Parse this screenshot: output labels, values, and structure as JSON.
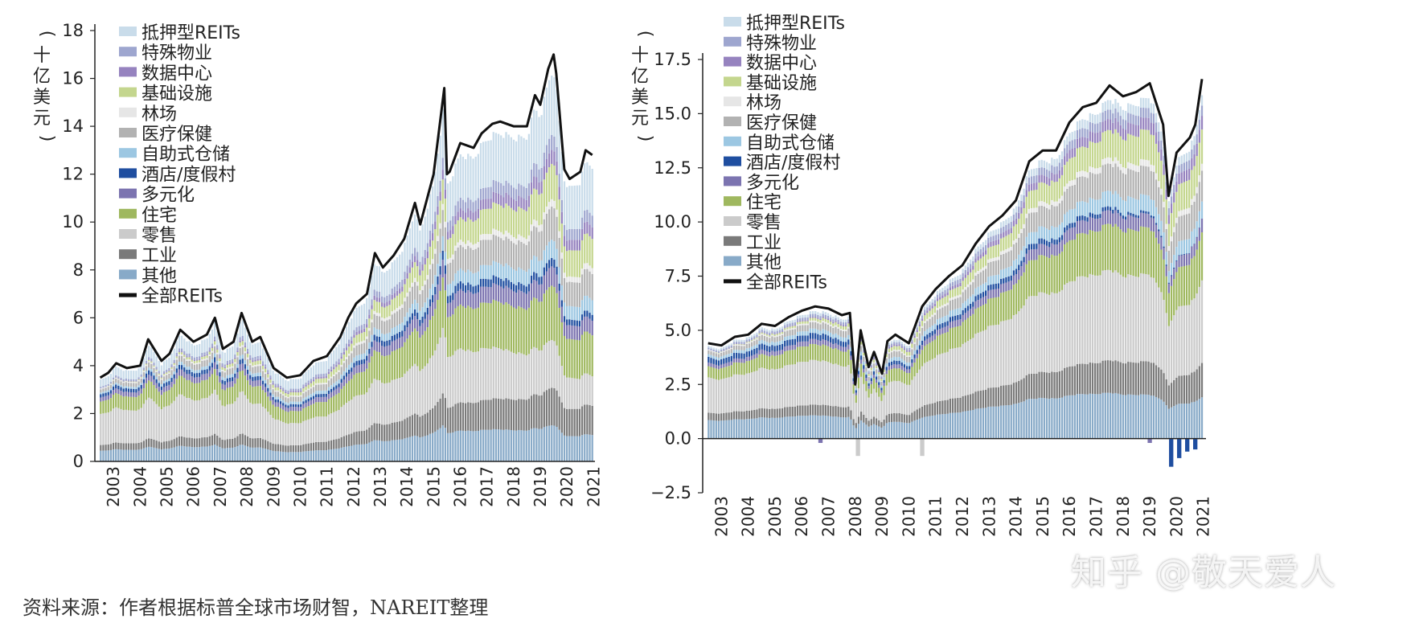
{
  "chart_data": [
    {
      "type": "area",
      "subtype": "stacked-bar-with-total-line",
      "ylabel": "（十亿美元）",
      "ylim": [
        0,
        18
      ],
      "yticks": [
        "0",
        "2",
        "4",
        "6",
        "8",
        "10",
        "12",
        "14",
        "16",
        "18"
      ],
      "xticks": [
        "2003",
        "2004",
        "2005",
        "2006",
        "2007",
        "2008",
        "2009",
        "2010",
        "2011",
        "2012",
        "2013",
        "2014",
        "2015",
        "2016",
        "2017",
        "2018",
        "2019",
        "2020",
        "2021"
      ],
      "legend": [
        {
          "name": "抵押型REITs",
          "color": "#c9dcea"
        },
        {
          "name": "特殊物业",
          "color": "#9ea6cf"
        },
        {
          "name": "数据中心",
          "color": "#9683bf"
        },
        {
          "name": "基础设施",
          "color": "#c4d68e"
        },
        {
          "name": "林场",
          "color": "#e6e6e6"
        },
        {
          "name": "医疗保健",
          "color": "#b2b2b2"
        },
        {
          "name": "自助式仓储",
          "color": "#9cc7e2"
        },
        {
          "name": "酒店/度假村",
          "color": "#1f4ea0"
        },
        {
          "name": "多元化",
          "color": "#7c74b0"
        },
        {
          "name": "住宅",
          "color": "#9fb85f"
        },
        {
          "name": "零售",
          "color": "#cbcbcb"
        },
        {
          "name": "工业",
          "color": "#7a7a7a"
        },
        {
          "name": "其他",
          "color": "#88aac8"
        },
        {
          "name": "全部REITs",
          "color": "#111111"
        }
      ],
      "total_series": {
        "name": "全部REITs",
        "x": [
          2003,
          2003.3,
          2003.6,
          2004,
          2004.5,
          2004.8,
          2005.3,
          2005.6,
          2006,
          2006.5,
          2007,
          2007.3,
          2007.6,
          2008,
          2008.3,
          2008.7,
          2009,
          2009.5,
          2010,
          2010.5,
          2011,
          2011.5,
          2012,
          2012.3,
          2012.6,
          2013,
          2013.3,
          2013.6,
          2014,
          2014.4,
          2014.8,
          2015,
          2015.5,
          2015.9,
          2016,
          2016.1,
          2016.5,
          2017,
          2017.3,
          2017.7,
          2018,
          2018.5,
          2019,
          2019.3,
          2019.5,
          2019.8,
          2020,
          2020.1,
          2020.4,
          2020.6,
          2021,
          2021.2,
          2021.45
        ],
        "y": [
          3.5,
          3.7,
          4.1,
          3.9,
          4.0,
          5.1,
          4.2,
          4.5,
          5.5,
          5.0,
          5.3,
          6.0,
          4.7,
          5.0,
          6.2,
          5.0,
          5.2,
          3.9,
          3.5,
          3.6,
          4.2,
          4.4,
          5.2,
          6.0,
          6.6,
          7.0,
          8.7,
          8.1,
          8.6,
          9.3,
          10.8,
          9.9,
          12.0,
          15.6,
          12.0,
          12.1,
          13.3,
          13.1,
          13.7,
          14.1,
          14.2,
          14.0,
          14.0,
          15.3,
          14.9,
          16.4,
          17.0,
          16.2,
          12.2,
          11.8,
          12.1,
          13.0,
          12.8
        ]
      },
      "stack_profile": [
        {
          "name": "其他",
          "share_2003": 0.13,
          "share_2021": 0.09
        },
        {
          "name": "工业",
          "share_2003": 0.07,
          "share_2021": 0.1
        },
        {
          "name": "零售",
          "share_2003": 0.38,
          "share_2021": 0.1
        },
        {
          "name": "住宅",
          "share_2003": 0.15,
          "share_2021": 0.14
        },
        {
          "name": "多元化",
          "share_2003": 0.05,
          "share_2021": 0.05
        },
        {
          "name": "酒店/度假村",
          "share_2003": 0.04,
          "share_2021": 0.02
        },
        {
          "name": "自助式仓储",
          "share_2003": 0.02,
          "share_2021": 0.05
        },
        {
          "name": "医疗保健",
          "share_2003": 0.04,
          "share_2021": 0.09
        },
        {
          "name": "林场",
          "share_2003": 0.01,
          "share_2021": 0.02
        },
        {
          "name": "基础设施",
          "share_2003": 0.0,
          "share_2021": 0.1
        },
        {
          "name": "数据中心",
          "share_2003": 0.0,
          "share_2021": 0.04
        },
        {
          "name": "特殊物业",
          "share_2003": 0.02,
          "share_2021": 0.04
        },
        {
          "name": "抵押型REITs",
          "share_2003": 0.09,
          "share_2021": 0.16
        }
      ]
    },
    {
      "type": "area",
      "subtype": "stacked-bar-with-total-line",
      "ylabel": "（十亿美元）",
      "ylim": [
        -2.5,
        17.5
      ],
      "yticks": [
        "−2.5",
        "0.0",
        "2.5",
        "5.0",
        "7.5",
        "10.0",
        "12.5",
        "15.0",
        "17.5"
      ],
      "xticks": [
        "2003",
        "2004",
        "2005",
        "2006",
        "2007",
        "2008",
        "2009",
        "2010",
        "2011",
        "2012",
        "2013",
        "2014",
        "2015",
        "2016",
        "2017",
        "2018",
        "2019",
        "2020",
        "2021"
      ],
      "legend": [
        {
          "name": "抵押型REITs",
          "color": "#c9dcea"
        },
        {
          "name": "特殊物业",
          "color": "#9ea6cf"
        },
        {
          "name": "数据中心",
          "color": "#9683bf"
        },
        {
          "name": "基础设施",
          "color": "#c4d68e"
        },
        {
          "name": "林场",
          "color": "#e6e6e6"
        },
        {
          "name": "医疗保健",
          "color": "#b2b2b2"
        },
        {
          "name": "自助式仓储",
          "color": "#9cc7e2"
        },
        {
          "name": "酒店/度假村",
          "color": "#1f4ea0"
        },
        {
          "name": "多元化",
          "color": "#7c74b0"
        },
        {
          "name": "住宅",
          "color": "#9fb85f"
        },
        {
          "name": "零售",
          "color": "#cbcbcb"
        },
        {
          "name": "工业",
          "color": "#7a7a7a"
        },
        {
          "name": "其他",
          "color": "#88aac8"
        },
        {
          "name": "全部REITs",
          "color": "#111111"
        }
      ],
      "total_series": {
        "name": "全部REITs",
        "x": [
          2003,
          2003.5,
          2004,
          2004.5,
          2005,
          2005.5,
          2006,
          2006.5,
          2007,
          2007.5,
          2008,
          2008.3,
          2008.5,
          2008.7,
          2009,
          2009.2,
          2009.5,
          2009.7,
          2010,
          2010.5,
          2011,
          2011.5,
          2012,
          2012.5,
          2013,
          2013.5,
          2014,
          2014.5,
          2015,
          2015.5,
          2016,
          2016.5,
          2017,
          2017.5,
          2018,
          2018.5,
          2019,
          2019.5,
          2020,
          2020.2,
          2020.5,
          2021,
          2021.2,
          2021.45
        ],
        "y": [
          4.4,
          4.3,
          4.7,
          4.8,
          5.3,
          5.2,
          5.6,
          5.9,
          6.1,
          6.0,
          5.7,
          5.8,
          2.5,
          5.0,
          3.3,
          4.0,
          3.0,
          4.5,
          4.8,
          4.4,
          6.1,
          6.9,
          7.5,
          8.0,
          9.0,
          9.8,
          10.3,
          11.0,
          12.8,
          13.3,
          13.3,
          14.6,
          15.3,
          15.5,
          16.3,
          15.8,
          16.0,
          16.4,
          14.5,
          11.2,
          13.2,
          13.9,
          14.5,
          16.6
        ]
      },
      "negative_values": [
        {
          "x": 2008.6,
          "name": "零售",
          "value": -0.8
        },
        {
          "x": 2007.2,
          "name": "多元化",
          "value": -0.2
        },
        {
          "x": 2011.0,
          "name": "零售",
          "value": -0.8
        },
        {
          "x": 2019.5,
          "name": "多元化",
          "value": -0.2
        },
        {
          "x": 2020.3,
          "name": "酒店/度假村",
          "value": -1.3
        },
        {
          "x": 2020.6,
          "name": "酒店/度假村",
          "value": -0.9
        },
        {
          "x": 2020.9,
          "name": "酒店/度假村",
          "value": -0.6
        },
        {
          "x": 2021.2,
          "name": "酒店/度假村",
          "value": -0.5
        }
      ],
      "stack_profile": [
        {
          "name": "其他",
          "share_2003": 0.2,
          "share_2021": 0.12
        },
        {
          "name": "工业",
          "share_2003": 0.08,
          "share_2021": 0.1
        },
        {
          "name": "零售",
          "share_2003": 0.38,
          "share_2021": 0.24
        },
        {
          "name": "住宅",
          "share_2003": 0.12,
          "share_2021": 0.14
        },
        {
          "name": "多元化",
          "share_2003": 0.04,
          "share_2021": 0.04
        },
        {
          "name": "酒店/度假村",
          "share_2003": 0.06,
          "share_2021": 0.0
        },
        {
          "name": "自助式仓储",
          "share_2003": 0.03,
          "share_2021": 0.05
        },
        {
          "name": "医疗保健",
          "share_2003": 0.04,
          "share_2021": 0.09
        },
        {
          "name": "林场",
          "share_2003": 0.01,
          "share_2021": 0.02
        },
        {
          "name": "基础设施",
          "share_2003": 0.0,
          "share_2021": 0.1
        },
        {
          "name": "数据中心",
          "share_2003": 0.0,
          "share_2021": 0.04
        },
        {
          "name": "特殊物业",
          "share_2003": 0.02,
          "share_2021": 0.03
        },
        {
          "name": "抵押型REITs",
          "share_2003": 0.02,
          "share_2021": 0.03
        }
      ]
    }
  ],
  "source": "资料来源：作者根据标普全球市场财智，NAREIT整理",
  "watermark": "知乎 @敬天爱人"
}
